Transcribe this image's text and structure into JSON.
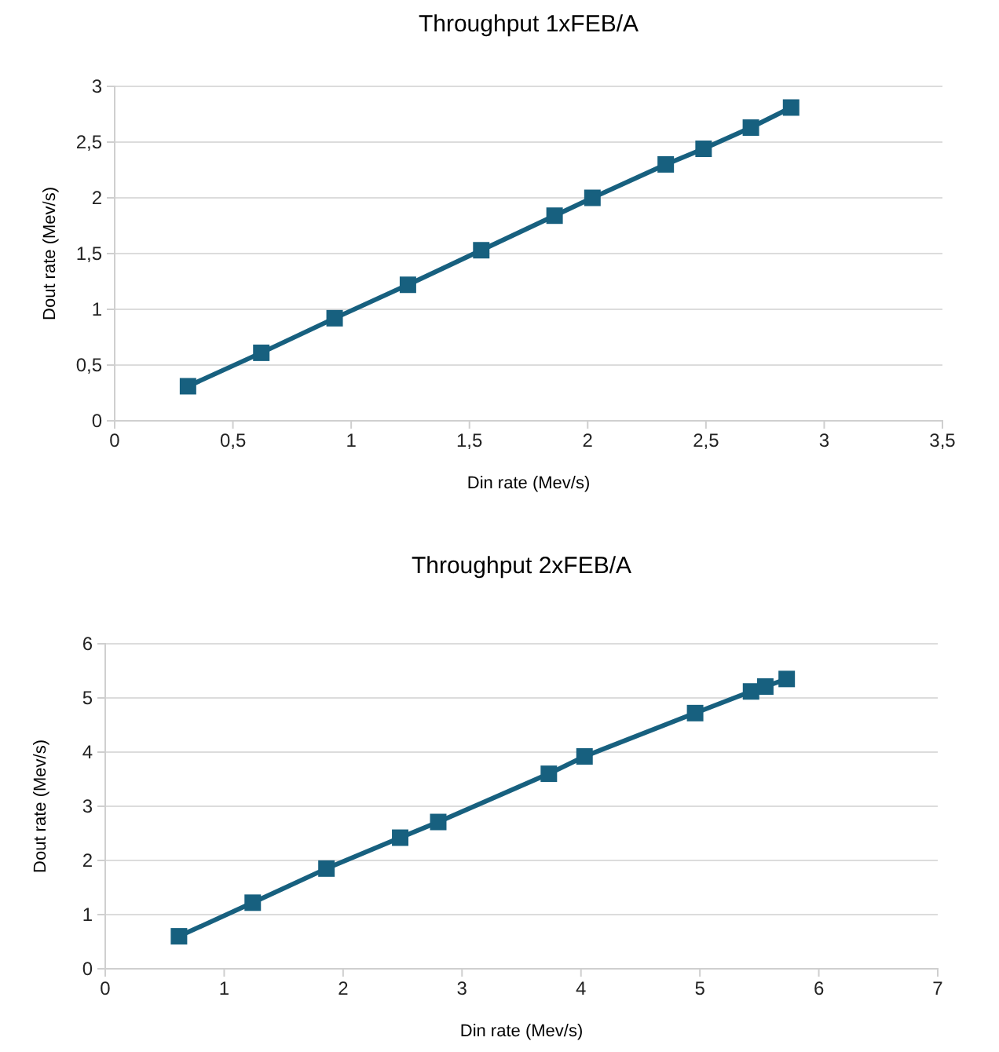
{
  "chart_data": [
    {
      "type": "line",
      "title": "Throughput 1xFEB/A",
      "xlabel": "Din rate (Mev/s)",
      "ylabel": "Dout rate (Mev/s)",
      "series": [
        {
          "color": "#17607f",
          "x": [
            0.31,
            0.62,
            0.93,
            1.24,
            1.55,
            1.86,
            2.02,
            2.33,
            2.49,
            2.69,
            2.86
          ],
          "values": [
            0.31,
            0.61,
            0.92,
            1.22,
            1.53,
            1.84,
            2.0,
            2.3,
            2.44,
            2.63,
            2.81
          ]
        }
      ],
      "xlim": [
        0,
        3.5
      ],
      "xticks": [
        0,
        {
          "value": 0.5,
          "label": "0,5"
        },
        1,
        {
          "value": 1.5,
          "label": "1,5"
        },
        2,
        {
          "value": 2.5,
          "label": "2,5"
        },
        3,
        {
          "value": 3.5,
          "label": "3,5"
        }
      ],
      "ylim": [
        0,
        3
      ],
      "yticks": [
        0,
        {
          "value": 0.5,
          "label": "0,5"
        },
        1,
        {
          "value": 1.5,
          "label": "1,5"
        },
        2,
        {
          "value": 2.5,
          "label": "2,5"
        },
        3
      ],
      "grid": "y",
      "marker": "square",
      "line_style": "solid"
    },
    {
      "type": "line",
      "title": "Throughput 2xFEB/A",
      "xlabel": "Din rate (Mev/s)",
      "ylabel": "Dout rate (Mev/s)",
      "series": [
        {
          "color": "#17607f",
          "x": [
            0.62,
            1.24,
            1.86,
            2.48,
            2.8,
            3.73,
            4.03,
            4.96,
            5.43,
            5.55,
            5.73
          ],
          "values": [
            0.6,
            1.22,
            1.85,
            2.42,
            2.71,
            3.6,
            3.92,
            4.72,
            5.12,
            5.21,
            5.35
          ]
        }
      ],
      "xlim": [
        0,
        7
      ],
      "xticks": [
        0,
        1,
        2,
        3,
        4,
        5,
        6,
        7
      ],
      "ylim": [
        0,
        6
      ],
      "yticks": [
        0,
        1,
        2,
        3,
        4,
        5,
        6
      ],
      "grid": "y",
      "marker": "square",
      "line_style": "solid"
    }
  ]
}
